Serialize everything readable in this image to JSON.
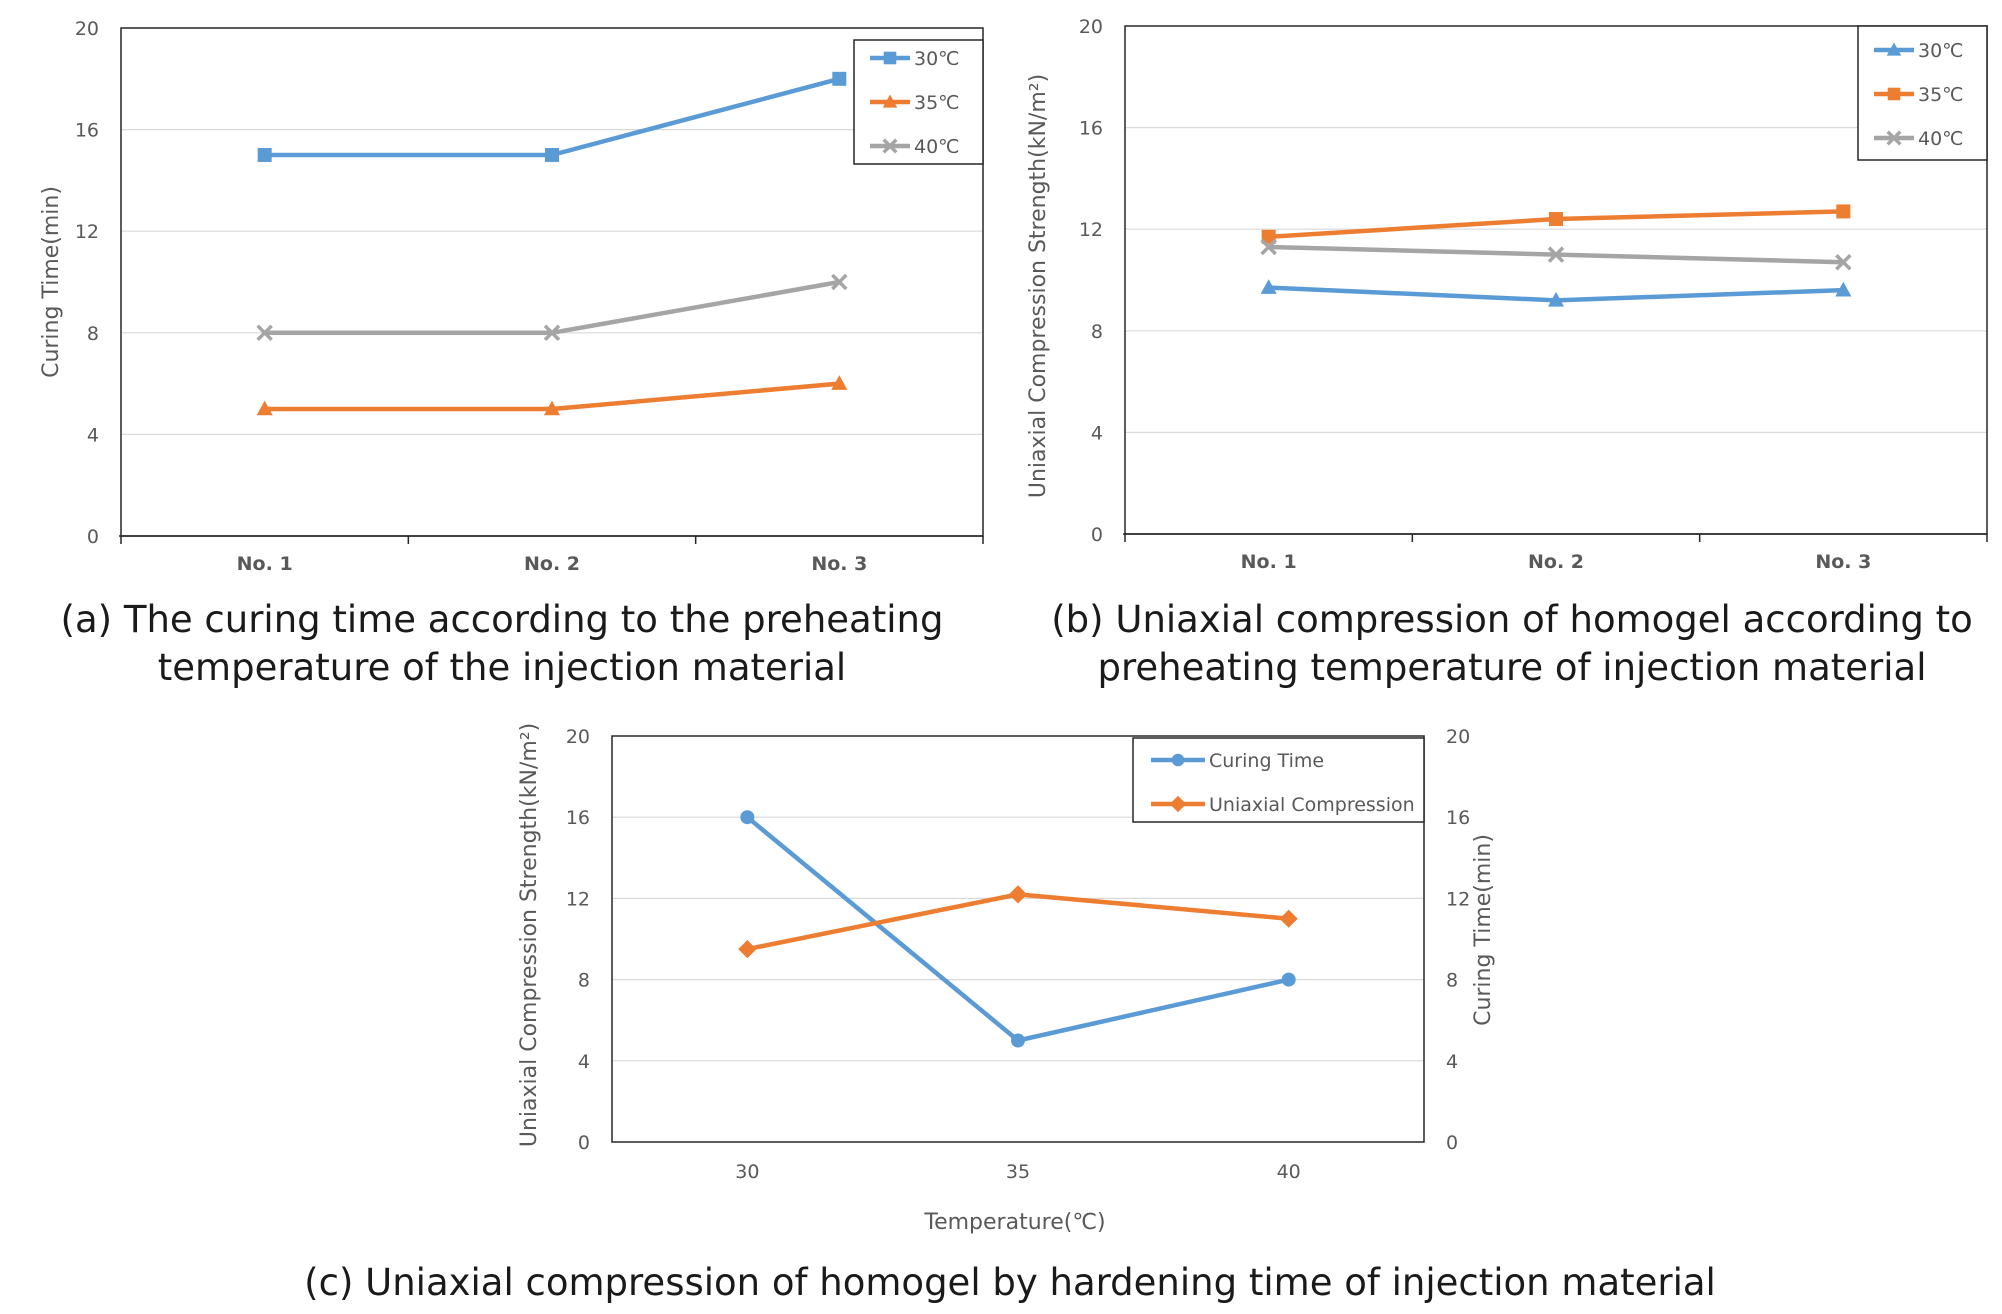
{
  "colors": {
    "blue": "#5b9bd5",
    "orange": "#ed7d31",
    "gray": "#a5a5a5"
  },
  "chart_data": [
    {
      "type": "line",
      "caption_line1": "(a) The curing time according to the preheating",
      "caption_line2": "temperature of the injection material",
      "ylabel": "Curing Time(min)",
      "xlabel": "",
      "ylim": [
        0,
        20
      ],
      "yticks": [
        "0",
        "4",
        "8",
        "12",
        "16",
        "20"
      ],
      "categories": [
        "No. 1",
        "No. 2",
        "No. 3"
      ],
      "series": [
        {
          "name": "30℃",
          "values": [
            15,
            15,
            18
          ],
          "marker": "square",
          "color": "#5b9bd5"
        },
        {
          "name": "35℃",
          "values": [
            5,
            5,
            6
          ],
          "marker": "triangle",
          "color": "#ed7d31"
        },
        {
          "name": "40℃",
          "values": [
            8,
            8,
            10
          ],
          "marker": "x",
          "color": "#a5a5a5"
        }
      ],
      "legend_position": "top-right",
      "grid": true
    },
    {
      "type": "line",
      "caption_line1": "(b) Uniaxial compression of homogel according to",
      "caption_line2": "preheating temperature of injection material",
      "ylabel": "Uniaxial Compression Strength(kN/m²)",
      "xlabel": "",
      "ylim": [
        0,
        20
      ],
      "yticks": [
        "0",
        "4",
        "8",
        "12",
        "16",
        "20"
      ],
      "categories": [
        "No. 1",
        "No. 2",
        "No. 3"
      ],
      "series": [
        {
          "name": "30℃",
          "values": [
            9.7,
            9.2,
            9.6
          ],
          "marker": "triangle",
          "color": "#5b9bd5"
        },
        {
          "name": "35℃",
          "values": [
            11.7,
            12.4,
            12.7
          ],
          "marker": "square",
          "color": "#ed7d31"
        },
        {
          "name": "40℃",
          "values": [
            11.3,
            11.0,
            10.7
          ],
          "marker": "x",
          "color": "#a5a5a5"
        }
      ],
      "legend_position": "top-right",
      "grid": true
    },
    {
      "type": "line",
      "caption_line1": "(c) Uniaxial compression of homogel by hardening time of injection material",
      "ylabel": "Uniaxial Compression Strength(kN/m²)",
      "ylabel_right": "Curing Time(min)",
      "xlabel": "Temperature(℃)",
      "ylim": [
        0,
        20
      ],
      "ylim_right": [
        0,
        20
      ],
      "yticks": [
        "0",
        "4",
        "8",
        "12",
        "16",
        "20"
      ],
      "categories": [
        "30",
        "35",
        "40"
      ],
      "series": [
        {
          "name": "Curing Time",
          "values": [
            16,
            5,
            8
          ],
          "marker": "circle",
          "color": "#5b9bd5"
        },
        {
          "name": "Uniaxial Compression",
          "values": [
            9.5,
            12.2,
            11.0
          ],
          "marker": "diamond",
          "color": "#ed7d31"
        }
      ],
      "legend_position": "top-right",
      "grid": true
    }
  ]
}
